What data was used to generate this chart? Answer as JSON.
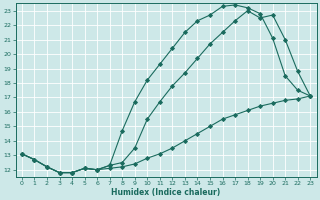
{
  "xlabel": "Humidex (Indice chaleur)",
  "bg_color": "#cde8e8",
  "grid_color": "#ffffff",
  "line_color": "#1a6b5e",
  "xlim": [
    -0.5,
    23.5
  ],
  "ylim": [
    11.5,
    23.5
  ],
  "xticks": [
    0,
    1,
    2,
    3,
    4,
    5,
    6,
    7,
    8,
    9,
    10,
    11,
    12,
    13,
    14,
    15,
    16,
    17,
    18,
    19,
    20,
    21,
    22,
    23
  ],
  "yticks": [
    12,
    13,
    14,
    15,
    16,
    17,
    18,
    19,
    20,
    21,
    22,
    23
  ],
  "curve1_x": [
    0,
    1,
    2,
    3,
    4,
    5,
    6,
    7,
    8,
    9,
    10,
    11,
    12,
    13,
    14,
    15,
    16,
    17,
    18,
    19,
    20,
    21,
    22,
    23
  ],
  "curve1_y": [
    13.1,
    12.7,
    12.2,
    11.8,
    11.8,
    12.1,
    12.0,
    12.3,
    14.7,
    16.7,
    18.2,
    19.3,
    20.4,
    21.5,
    22.3,
    22.7,
    23.3,
    23.4,
    23.2,
    22.8,
    21.1,
    18.5,
    17.5,
    17.1
  ],
  "curve2_x": [
    0,
    1,
    2,
    3,
    4,
    5,
    6,
    7,
    8,
    9,
    10,
    11,
    12,
    13,
    14,
    15,
    16,
    17,
    18,
    19,
    20,
    21,
    22,
    23
  ],
  "curve2_y": [
    13.1,
    12.7,
    12.2,
    11.8,
    11.8,
    12.1,
    12.0,
    12.3,
    12.5,
    13.5,
    15.5,
    16.7,
    17.8,
    18.7,
    19.7,
    20.7,
    21.5,
    22.3,
    23.0,
    22.5,
    22.7,
    21.0,
    18.8,
    17.1
  ],
  "curve3_x": [
    0,
    1,
    2,
    3,
    4,
    5,
    6,
    7,
    8,
    9,
    10,
    11,
    12,
    13,
    14,
    15,
    16,
    17,
    18,
    19,
    20,
    21,
    22,
    23
  ],
  "curve3_y": [
    13.1,
    12.7,
    12.2,
    11.8,
    11.8,
    12.1,
    12.0,
    12.1,
    12.2,
    12.4,
    12.8,
    13.1,
    13.5,
    14.0,
    14.5,
    15.0,
    15.5,
    15.8,
    16.1,
    16.4,
    16.6,
    16.8,
    16.9,
    17.1
  ]
}
